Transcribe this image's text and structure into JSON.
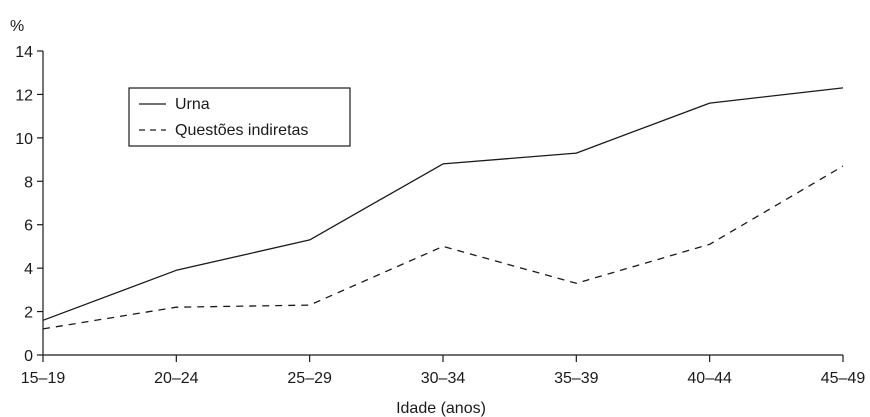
{
  "chart_data": {
    "type": "line",
    "title": "",
    "xlabel": "Idade (anos)",
    "ylabel": "%",
    "categories": [
      "15–19",
      "20–24",
      "25–29",
      "30–34",
      "35–39",
      "40–44",
      "45–49"
    ],
    "ylim": [
      0,
      14
    ],
    "yticks": [
      0,
      2,
      4,
      6,
      8,
      10,
      12,
      14
    ],
    "ytick_labels": [
      "0",
      "2",
      "4",
      "6",
      "8",
      "10",
      "12",
      "14"
    ],
    "grid": false,
    "legend": "top-left",
    "series": [
      {
        "name": "Urna",
        "style": "solid",
        "color": "#1a1a1a",
        "values": [
          1.6,
          3.9,
          5.3,
          8.8,
          9.3,
          11.6,
          12.3
        ]
      },
      {
        "name": "Questões indiretas",
        "style": "dashed",
        "color": "#1a1a1a",
        "values": [
          1.2,
          2.2,
          2.3,
          5.0,
          3.3,
          5.1,
          8.7
        ]
      }
    ]
  }
}
